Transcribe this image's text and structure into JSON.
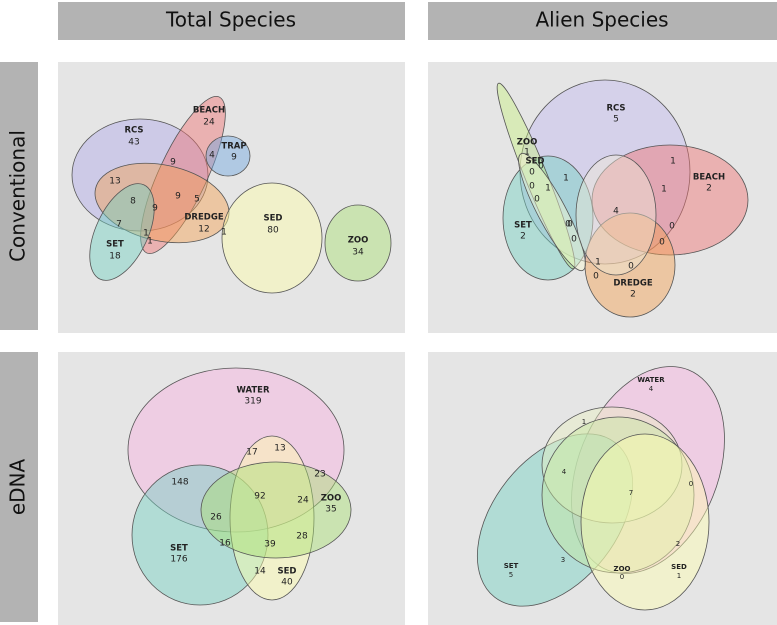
{
  "column_headers": [
    "Total Species",
    "Alien Species"
  ],
  "row_headers": [
    "Conventional",
    "eDNA"
  ],
  "panels": [
    {
      "sets": [
        {
          "label": "RCS",
          "count": 43
        },
        {
          "label": "BEACH",
          "count": 24
        },
        {
          "label": "TRAP",
          "count": 9
        },
        {
          "label": "DREDGE",
          "count": 12
        },
        {
          "label": "SET",
          "count": 18
        },
        {
          "label": "SED",
          "count": 80
        },
        {
          "label": "ZOO",
          "count": 34
        }
      ],
      "regions": [
        9,
        4,
        13,
        8,
        9,
        9,
        5,
        7,
        1,
        1,
        1
      ]
    },
    {
      "sets": [
        {
          "label": "RCS",
          "count": 5
        },
        {
          "label": "ZOO",
          "count": 1
        },
        {
          "label": "SED",
          "count": 0
        },
        {
          "label": "SET",
          "count": 2
        },
        {
          "label": "BEACH",
          "count": 2
        },
        {
          "label": "DREDGE",
          "count": 2
        }
      ],
      "regions": [
        1,
        1,
        1,
        1,
        4,
        1,
        0,
        0,
        0,
        0,
        0,
        0,
        0,
        0,
        0,
        0
      ]
    },
    {
      "sets": [
        {
          "label": "WATER",
          "count": 319
        },
        {
          "label": "SET",
          "count": 176
        },
        {
          "label": "ZOO",
          "count": 35
        },
        {
          "label": "SED",
          "count": 40
        }
      ],
      "regions": [
        148,
        17,
        13,
        23,
        92,
        24,
        26,
        16,
        39,
        28,
        14
      ]
    },
    {
      "sets": [
        {
          "label": "WATER",
          "count": 4
        },
        {
          "label": "SET",
          "count": 5
        },
        {
          "label": "ZOO",
          "count": 0
        },
        {
          "label": "SED",
          "count": 1
        }
      ],
      "regions": [
        1,
        4,
        7,
        0,
        3,
        2
      ]
    }
  ]
}
